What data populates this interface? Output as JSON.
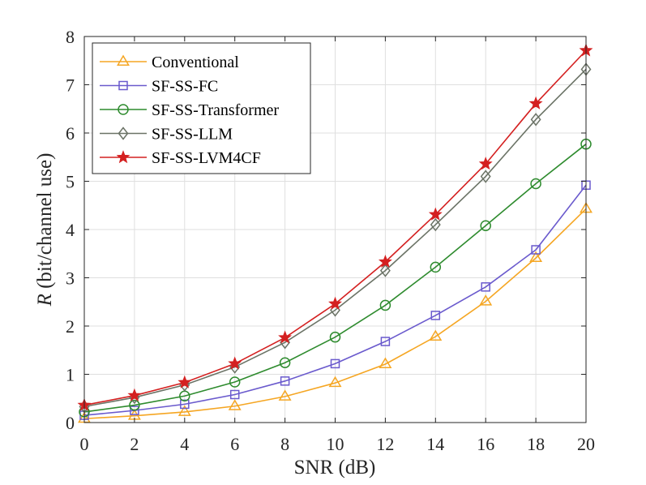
{
  "chart_data": {
    "type": "line",
    "xlabel": "SNR (dB)",
    "ylabel_symbol": "R",
    "ylabel_text": " (bit/channel use)",
    "xlim": [
      0,
      20
    ],
    "ylim": [
      0,
      8
    ],
    "x_ticks": [
      "0",
      "2",
      "4",
      "6",
      "8",
      "10",
      "12",
      "14",
      "16",
      "18",
      "20"
    ],
    "y_ticks": [
      "0",
      "1",
      "2",
      "3",
      "4",
      "5",
      "6",
      "7",
      "8"
    ],
    "grid": true,
    "legend_position": "top-left",
    "x": [
      0,
      2,
      4,
      6,
      8,
      10,
      12,
      14,
      16,
      18,
      20
    ],
    "series": [
      {
        "name": "Conventional",
        "color": "#f5a623",
        "marker": "triangle",
        "values": [
          0.08,
          0.14,
          0.22,
          0.34,
          0.54,
          0.82,
          1.21,
          1.78,
          2.51,
          3.41,
          4.43
        ]
      },
      {
        "name": "SF-SS-FC",
        "color": "#6a5acd",
        "marker": "square",
        "values": [
          0.15,
          0.25,
          0.38,
          0.58,
          0.86,
          1.22,
          1.68,
          2.22,
          2.81,
          3.58,
          4.92
        ]
      },
      {
        "name": "SF-SS-Transformer",
        "color": "#2e8b2e",
        "marker": "circle",
        "values": [
          0.22,
          0.36,
          0.55,
          0.84,
          1.24,
          1.77,
          2.43,
          3.22,
          4.08,
          4.95,
          5.77
        ]
      },
      {
        "name": "SF-SS-LLM",
        "color": "#6b7366",
        "marker": "diamond",
        "values": [
          0.33,
          0.52,
          0.78,
          1.15,
          1.66,
          2.33,
          3.15,
          4.1,
          5.1,
          6.28,
          7.32
        ]
      },
      {
        "name": "SF-SS-LVM4CF",
        "color": "#d42020",
        "marker": "star",
        "values": [
          0.36,
          0.56,
          0.83,
          1.22,
          1.76,
          2.46,
          3.33,
          4.31,
          5.36,
          6.61,
          7.71
        ]
      }
    ]
  }
}
